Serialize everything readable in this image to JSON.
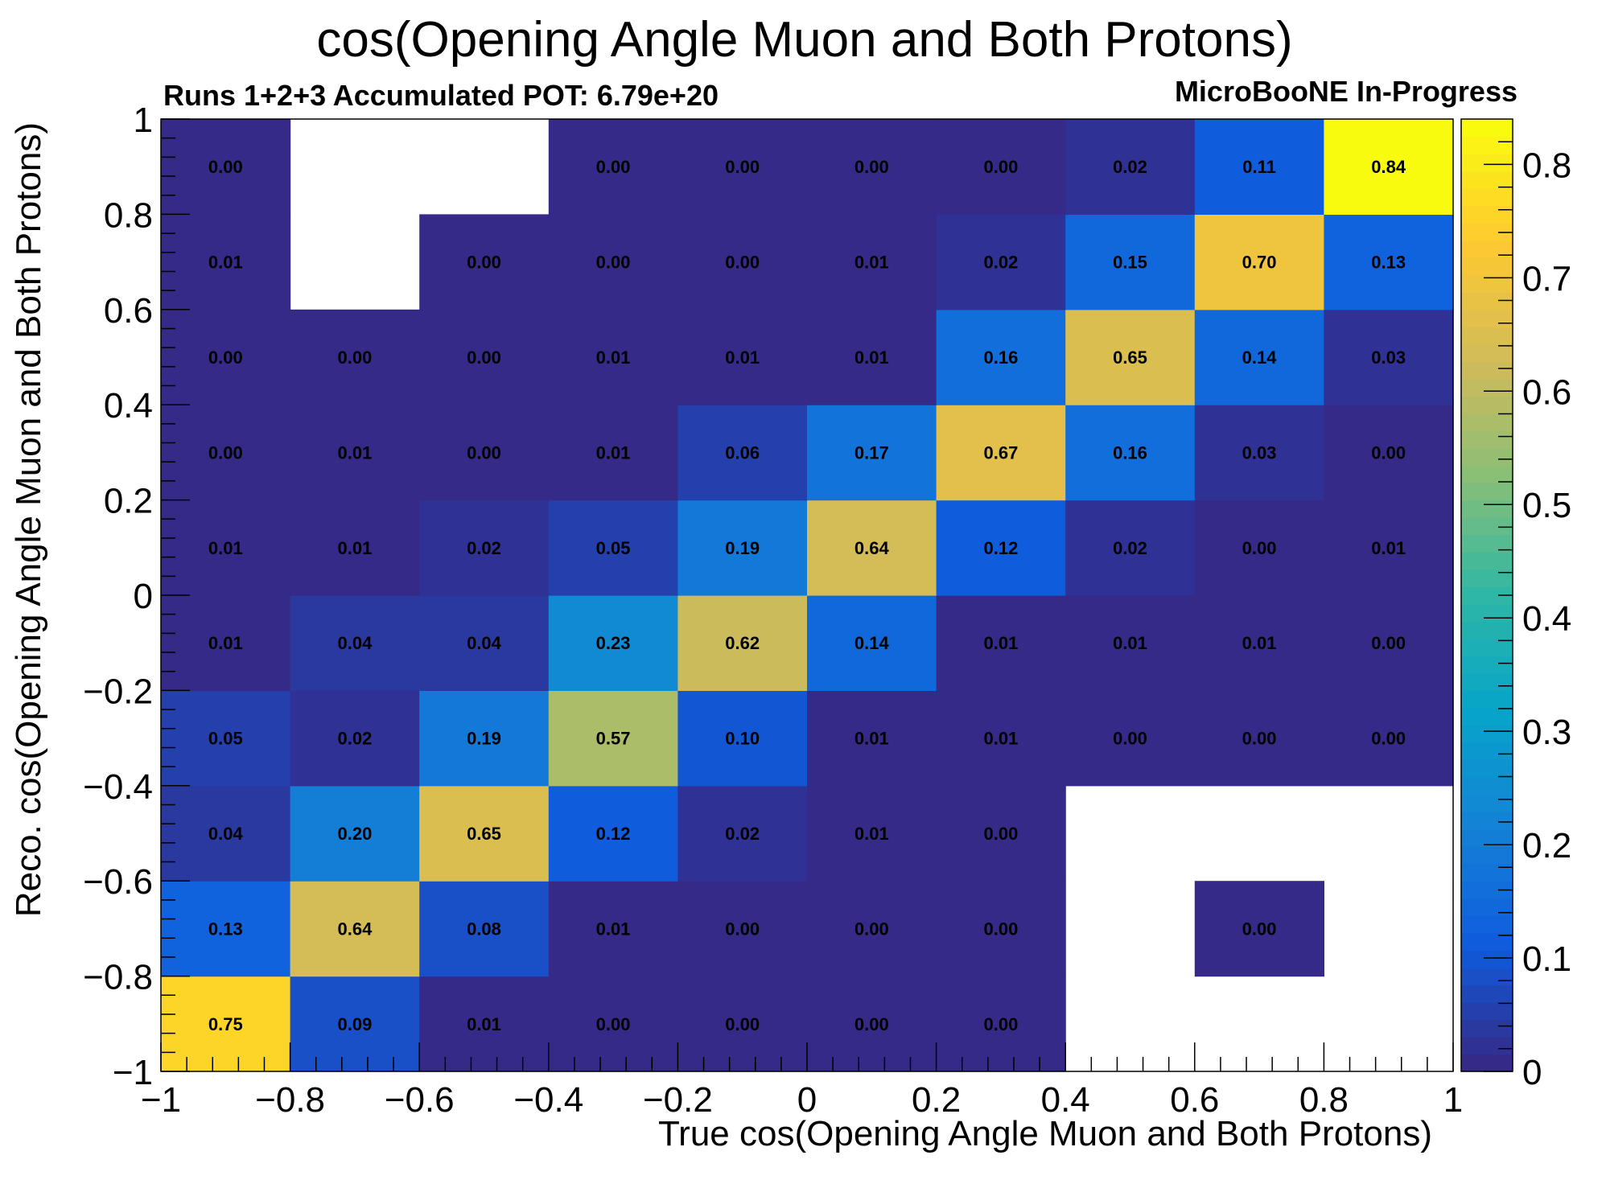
{
  "chart_data": {
    "type": "heatmap",
    "title": "cos(Opening Angle Muon and Both Protons)",
    "subtitle_left": "Runs 1+2+3 Accumulated POT: 6.79e+20",
    "subtitle_right": "MicroBooNE In-Progress",
    "xlabel": "True cos(Opening Angle Muon and Both Protons)",
    "ylabel": "Reco. cos(Opening Angle Muon and Both Protons)",
    "xlim": [
      -1,
      1
    ],
    "ylim": [
      -1,
      1
    ],
    "zlim": [
      0,
      0.84
    ],
    "x_bin_edges": [
      -1,
      -0.8,
      -0.6,
      -0.4,
      -0.2,
      0,
      0.2,
      0.4,
      0.6,
      0.8,
      1
    ],
    "y_bin_edges": [
      -1,
      -0.8,
      -0.6,
      -0.4,
      -0.2,
      0,
      0.2,
      0.4,
      0.6,
      0.8,
      1
    ],
    "x_tick_labels": [
      "−1",
      "−0.8",
      "−0.6",
      "−0.4",
      "−0.2",
      "0",
      "0.2",
      "0.4",
      "0.6",
      "0.8",
      "1"
    ],
    "y_tick_labels": [
      "−1",
      "−0.8",
      "−0.6",
      "−0.4",
      "−0.2",
      "0",
      "0.2",
      "0.4",
      "0.6",
      "0.8",
      "1"
    ],
    "z_tick_labels": [
      "0",
      "0.1",
      "0.2",
      "0.3",
      "0.4",
      "0.5",
      "0.6",
      "0.7",
      "0.8"
    ],
    "palette": "Parula",
    "empty_bin_color": "#ffffff",
    "values_row_order": "reco bins from bottom (-1..-0.8) to top (0.8..1); columns are true bins from -1 to 1; null = empty bin",
    "values": [
      [
        0.75,
        0.09,
        0.01,
        0.0,
        0.0,
        0.0,
        0.0,
        null,
        null,
        null
      ],
      [
        0.13,
        0.64,
        0.08,
        0.01,
        0.0,
        0.0,
        0.0,
        null,
        0.0,
        null
      ],
      [
        0.04,
        0.2,
        0.65,
        0.12,
        0.02,
        0.01,
        0.0,
        null,
        null,
        null
      ],
      [
        0.05,
        0.02,
        0.19,
        0.57,
        0.1,
        0.01,
        0.01,
        0.0,
        0.0,
        0.0
      ],
      [
        0.01,
        0.04,
        0.04,
        0.23,
        0.62,
        0.14,
        0.01,
        0.01,
        0.01,
        0.0
      ],
      [
        0.01,
        0.01,
        0.02,
        0.05,
        0.19,
        0.64,
        0.12,
        0.02,
        0.0,
        0.01
      ],
      [
        0.0,
        0.01,
        0.0,
        0.01,
        0.06,
        0.17,
        0.67,
        0.16,
        0.03,
        0.0
      ],
      [
        0.0,
        0.0,
        0.0,
        0.01,
        0.01,
        0.01,
        0.16,
        0.65,
        0.14,
        0.03
      ],
      [
        0.01,
        null,
        0.0,
        0.0,
        0.0,
        0.01,
        0.02,
        0.15,
        0.7,
        0.13
      ],
      [
        0.0,
        null,
        null,
        0.0,
        0.0,
        0.0,
        0.0,
        0.02,
        0.11,
        0.84
      ]
    ],
    "value_format": "0.00"
  }
}
